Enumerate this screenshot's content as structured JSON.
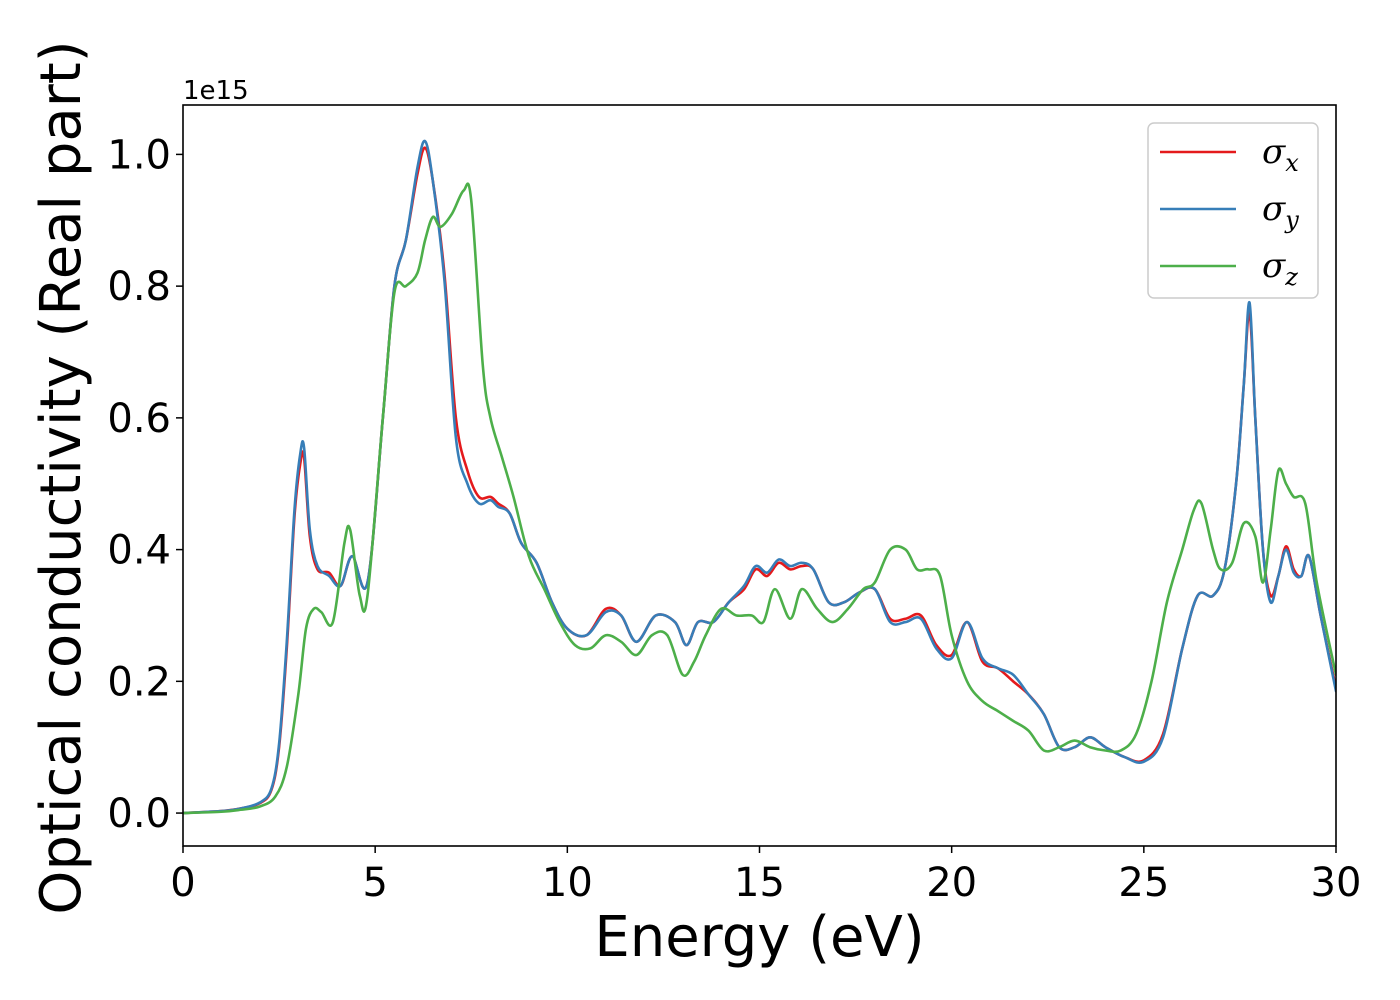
{
  "chart_data": {
    "type": "line",
    "xlabel": "Energy (eV)",
    "ylabel": "Optical conductivity (Real part)",
    "offset_text": "1e15",
    "xlim": [
      0,
      30
    ],
    "ylim": [
      -0.05,
      1.075
    ],
    "xticks": [
      0,
      5,
      10,
      15,
      20,
      25,
      30
    ],
    "yticks": [
      0.0,
      0.2,
      0.4,
      0.6,
      0.8,
      1.0
    ],
    "xtick_labels": [
      "0",
      "5",
      "10",
      "15",
      "20",
      "25",
      "30"
    ],
    "ytick_labels": [
      "0.0",
      "0.2",
      "0.4",
      "0.6",
      "0.8",
      "1.0"
    ],
    "grid": false,
    "legend_position": "top-right",
    "series": [
      {
        "name": "σx",
        "symbol": "σ",
        "subscript": "x",
        "color": "#e41a1c",
        "x": [
          0,
          1,
          1.5,
          2,
          2.3,
          2.5,
          2.7,
          2.9,
          3.05,
          3.15,
          3.3,
          3.5,
          3.8,
          4.1,
          4.4,
          4.8,
          5.2,
          5.5,
          5.8,
          6.1,
          6.3,
          6.5,
          6.8,
          7.1,
          7.4,
          7.7,
          8.0,
          8.2,
          8.5,
          8.8,
          9.2,
          9.6,
          10.0,
          10.5,
          11.0,
          11.4,
          11.8,
          12.3,
          12.8,
          13.1,
          13.4,
          13.8,
          14.2,
          14.6,
          14.9,
          15.2,
          15.5,
          15.8,
          16.1,
          16.4,
          16.8,
          17.2,
          17.6,
          18.0,
          18.4,
          18.8,
          19.2,
          19.6,
          20.0,
          20.4,
          20.8,
          21.2,
          21.6,
          22.0,
          22.4,
          22.8,
          23.2,
          23.6,
          24.0,
          24.5,
          25.0,
          25.5,
          26.0,
          26.4,
          26.8,
          27.1,
          27.4,
          27.6,
          27.75,
          27.9,
          28.1,
          28.3,
          28.5,
          28.7,
          28.9,
          29.1,
          29.3,
          29.6,
          30.0
        ],
        "y": [
          0.0,
          0.003,
          0.007,
          0.015,
          0.035,
          0.1,
          0.25,
          0.45,
          0.53,
          0.54,
          0.42,
          0.37,
          0.365,
          0.345,
          0.39,
          0.35,
          0.6,
          0.8,
          0.87,
          0.97,
          1.01,
          0.96,
          0.82,
          0.6,
          0.52,
          0.48,
          0.48,
          0.47,
          0.455,
          0.41,
          0.38,
          0.32,
          0.28,
          0.27,
          0.31,
          0.3,
          0.26,
          0.3,
          0.29,
          0.255,
          0.29,
          0.29,
          0.32,
          0.34,
          0.37,
          0.36,
          0.38,
          0.37,
          0.375,
          0.37,
          0.32,
          0.32,
          0.335,
          0.34,
          0.295,
          0.295,
          0.3,
          0.255,
          0.24,
          0.29,
          0.23,
          0.22,
          0.2,
          0.18,
          0.15,
          0.1,
          0.1,
          0.115,
          0.1,
          0.085,
          0.08,
          0.12,
          0.25,
          0.33,
          0.33,
          0.37,
          0.5,
          0.65,
          0.76,
          0.6,
          0.4,
          0.33,
          0.36,
          0.405,
          0.37,
          0.36,
          0.39,
          0.3,
          0.19
        ]
      },
      {
        "name": "σy",
        "symbol": "σ",
        "subscript": "y",
        "color": "#377eb8",
        "x": [
          0,
          1,
          1.5,
          2,
          2.3,
          2.5,
          2.7,
          2.9,
          3.05,
          3.15,
          3.3,
          3.5,
          3.8,
          4.1,
          4.4,
          4.8,
          5.2,
          5.5,
          5.8,
          6.1,
          6.3,
          6.5,
          6.8,
          7.1,
          7.4,
          7.7,
          8.0,
          8.2,
          8.5,
          8.8,
          9.2,
          9.6,
          10.0,
          10.5,
          11.0,
          11.4,
          11.8,
          12.3,
          12.8,
          13.1,
          13.4,
          13.8,
          14.2,
          14.6,
          14.9,
          15.2,
          15.5,
          15.8,
          16.1,
          16.4,
          16.8,
          17.2,
          17.6,
          18.0,
          18.4,
          18.8,
          19.2,
          19.6,
          20.0,
          20.4,
          20.8,
          21.2,
          21.6,
          22.0,
          22.4,
          22.8,
          23.2,
          23.6,
          24.0,
          24.5,
          25.0,
          25.5,
          26.0,
          26.4,
          26.8,
          27.1,
          27.4,
          27.6,
          27.75,
          27.9,
          28.1,
          28.3,
          28.5,
          28.7,
          28.9,
          29.1,
          29.3,
          29.6,
          30.0
        ],
        "y": [
          0.0,
          0.003,
          0.007,
          0.016,
          0.037,
          0.105,
          0.26,
          0.46,
          0.545,
          0.555,
          0.43,
          0.375,
          0.36,
          0.345,
          0.39,
          0.35,
          0.6,
          0.8,
          0.87,
          0.98,
          1.02,
          0.96,
          0.81,
          0.57,
          0.5,
          0.47,
          0.475,
          0.465,
          0.455,
          0.41,
          0.38,
          0.32,
          0.28,
          0.27,
          0.305,
          0.3,
          0.26,
          0.3,
          0.29,
          0.255,
          0.29,
          0.29,
          0.32,
          0.345,
          0.375,
          0.365,
          0.385,
          0.375,
          0.38,
          0.37,
          0.32,
          0.32,
          0.335,
          0.34,
          0.29,
          0.29,
          0.295,
          0.25,
          0.235,
          0.29,
          0.235,
          0.22,
          0.21,
          0.18,
          0.15,
          0.1,
          0.1,
          0.115,
          0.1,
          0.085,
          0.078,
          0.115,
          0.25,
          0.33,
          0.33,
          0.37,
          0.5,
          0.65,
          0.775,
          0.6,
          0.4,
          0.32,
          0.36,
          0.4,
          0.365,
          0.36,
          0.39,
          0.3,
          0.185
        ]
      },
      {
        "name": "σz",
        "symbol": "σ",
        "subscript": "z",
        "color": "#4daf4a",
        "x": [
          0,
          1,
          1.5,
          2,
          2.4,
          2.7,
          3.0,
          3.2,
          3.4,
          3.6,
          3.9,
          4.2,
          4.35,
          4.6,
          4.8,
          5.2,
          5.5,
          5.8,
          6.1,
          6.3,
          6.5,
          6.7,
          7.0,
          7.3,
          7.5,
          7.8,
          8.0,
          8.3,
          8.6,
          9.0,
          9.4,
          9.8,
          10.2,
          10.6,
          11.0,
          11.4,
          11.8,
          12.2,
          12.6,
          13.0,
          13.3,
          13.6,
          14.0,
          14.4,
          14.8,
          15.1,
          15.4,
          15.8,
          16.1,
          16.5,
          16.9,
          17.3,
          17.7,
          18.0,
          18.4,
          18.8,
          19.1,
          19.4,
          19.7,
          20.0,
          20.4,
          20.8,
          21.2,
          21.6,
          22.0,
          22.4,
          22.8,
          23.2,
          23.6,
          24.0,
          24.4,
          24.8,
          25.2,
          25.6,
          26.0,
          26.3,
          26.5,
          26.8,
          27.0,
          27.3,
          27.6,
          27.9,
          28.1,
          28.3,
          28.5,
          28.7,
          28.9,
          29.2,
          29.5,
          30.0
        ],
        "y": [
          0.0,
          0.002,
          0.005,
          0.01,
          0.025,
          0.07,
          0.18,
          0.28,
          0.31,
          0.305,
          0.29,
          0.41,
          0.43,
          0.33,
          0.33,
          0.6,
          0.79,
          0.8,
          0.82,
          0.87,
          0.905,
          0.89,
          0.91,
          0.945,
          0.93,
          0.68,
          0.6,
          0.54,
          0.48,
          0.39,
          0.34,
          0.29,
          0.255,
          0.25,
          0.27,
          0.26,
          0.24,
          0.27,
          0.27,
          0.21,
          0.23,
          0.27,
          0.31,
          0.3,
          0.3,
          0.29,
          0.34,
          0.295,
          0.34,
          0.31,
          0.29,
          0.31,
          0.34,
          0.35,
          0.4,
          0.4,
          0.37,
          0.37,
          0.36,
          0.27,
          0.2,
          0.17,
          0.155,
          0.14,
          0.125,
          0.095,
          0.1,
          0.11,
          0.1,
          0.095,
          0.095,
          0.12,
          0.2,
          0.32,
          0.4,
          0.46,
          0.47,
          0.4,
          0.37,
          0.38,
          0.44,
          0.42,
          0.35,
          0.43,
          0.52,
          0.5,
          0.48,
          0.47,
          0.35,
          0.21
        ]
      }
    ]
  }
}
